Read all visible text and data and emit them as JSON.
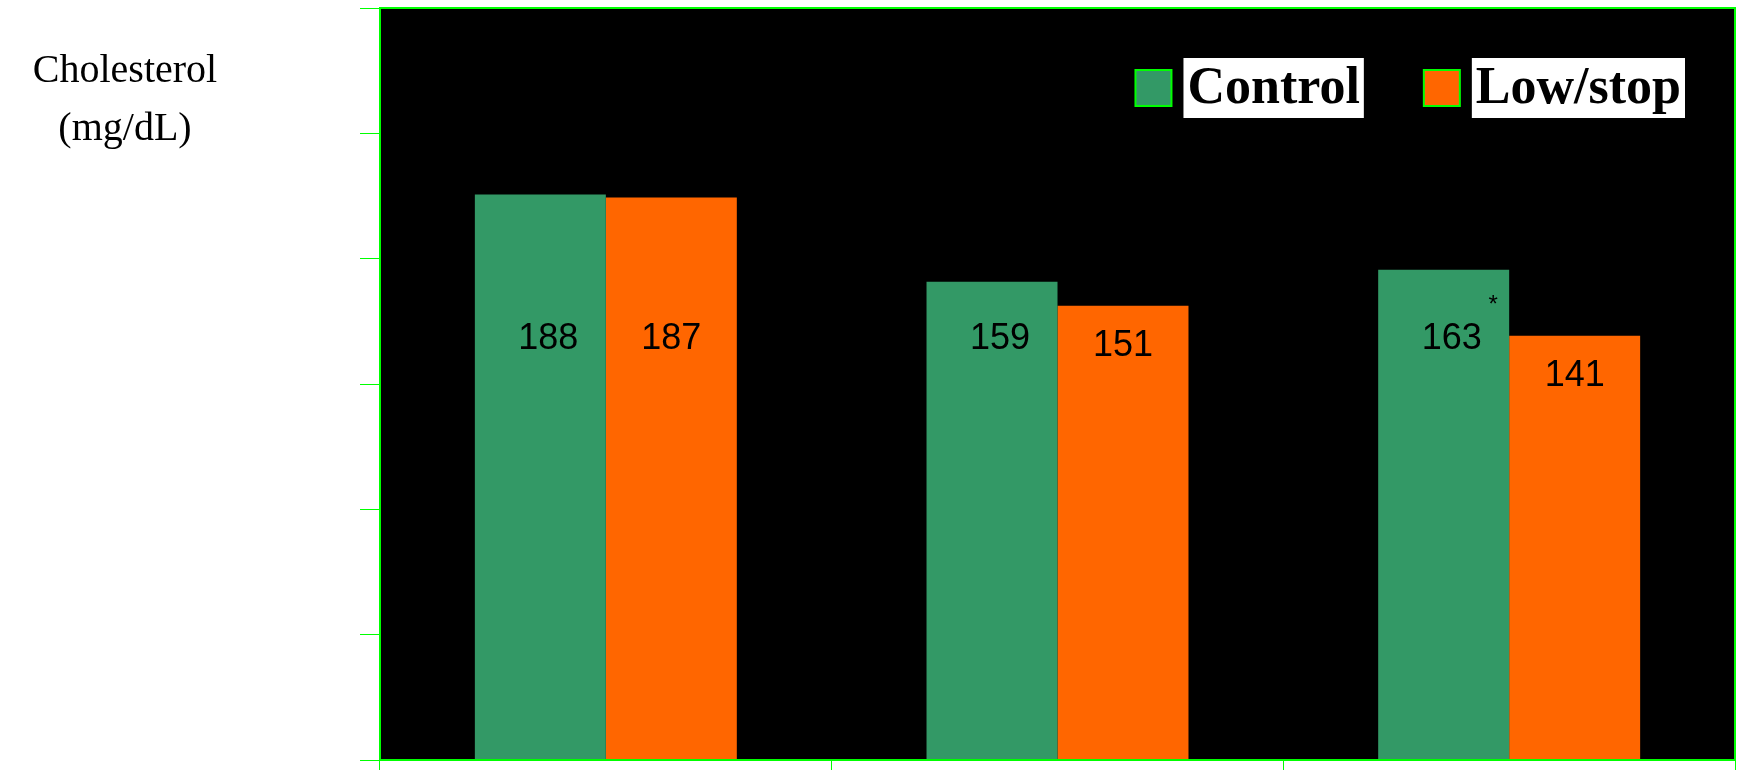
{
  "chart_data": {
    "type": "bar",
    "ylabel": "Cholesterol (mg/dL)",
    "categories": [
      null,
      null,
      null
    ],
    "series": [
      {
        "name": "Control",
        "color": "#339966",
        "values": [
          188,
          159,
          163
        ]
      },
      {
        "name": "Low/stop",
        "color": "#ff6600",
        "values": [
          187,
          151,
          141
        ]
      }
    ],
    "data_labels": true,
    "annotations": [
      "*"
    ],
    "legend": "top right",
    "grid": false,
    "tick_labels": false
  }
}
